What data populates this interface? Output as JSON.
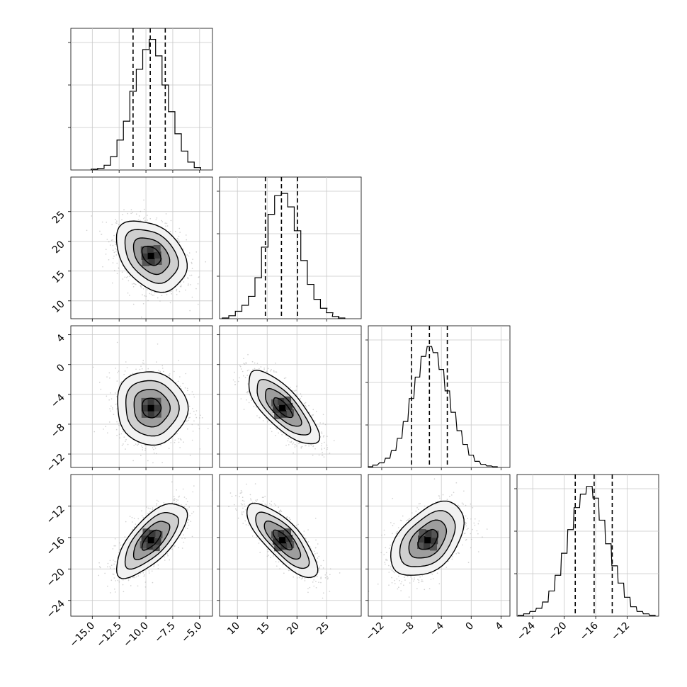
{
  "chart_data": {
    "type": "corner",
    "title": "",
    "params": [
      {
        "range": [
          -17.0,
          -3.8
        ],
        "ticks": [
          -15.0,
          -12.5,
          -10.0,
          -7.5,
          -5.0
        ],
        "tick_labels": [
          "−15.0",
          "−12.5",
          "−10.0",
          "−7.5",
          "−5.0"
        ],
        "quantiles": [
          -11.2,
          -9.6,
          -8.2
        ],
        "hist_x": [
          -14.8,
          -14.2,
          -13.6,
          -13.0,
          -12.4,
          -11.8,
          -11.2,
          -10.6,
          -10.0,
          -9.4,
          -8.8,
          -8.2,
          -7.6,
          -7.0,
          -6.4,
          -5.8,
          -5.2
        ],
        "hist": [
          1,
          2,
          6,
          17,
          38,
          62,
          100,
          128,
          153,
          166,
          145,
          108,
          74,
          46,
          24,
          10,
          3
        ],
        "hist_max": 180,
        "center": -9.5,
        "sigma": 1.6
      },
      {
        "range": [
          7.0,
          30.8
        ],
        "ticks": [
          10,
          15,
          20,
          25
        ],
        "tick_labels": [
          "10",
          "15",
          "20",
          "25"
        ],
        "quantiles": [
          14.7,
          17.4,
          20.1
        ],
        "hist_x": [
          8.0,
          9.1,
          10.2,
          11.3,
          12.4,
          13.5,
          14.6,
          15.7,
          16.8,
          17.9,
          19.0,
          20.1,
          21.2,
          22.3,
          23.4,
          24.5,
          25.5,
          26.5,
          27.5
        ],
        "hist": [
          1,
          4,
          10,
          18,
          30,
          55,
          96,
          140,
          165,
          168,
          150,
          118,
          78,
          46,
          26,
          14,
          8,
          3,
          1
        ],
        "hist_max": 190,
        "center": 17.6,
        "sigma": 2.9
      },
      {
        "range": [
          -13.8,
          5.2
        ],
        "ticks": [
          -12,
          -8,
          -4,
          0,
          4
        ],
        "tick_labels": [
          "−12",
          "−8",
          "−4",
          "0",
          "4"
        ],
        "quantiles": [
          -8.0,
          -5.6,
          -3.2
        ],
        "hist_x": [
          -13.5,
          -12.9,
          -12.0,
          -11.2,
          -10.4,
          -9.6,
          -8.8,
          -8.0,
          -7.2,
          -6.4,
          -5.6,
          -4.8,
          -4.0,
          -3.2,
          -2.4,
          -1.6,
          -0.8,
          0.0,
          0.8,
          1.6,
          2.4,
          3.2
        ],
        "hist": [
          1,
          3,
          6,
          12,
          22,
          38,
          60,
          90,
          118,
          145,
          158,
          150,
          128,
          100,
          72,
          48,
          30,
          16,
          8,
          4,
          2,
          1
        ],
        "hist_max": 185,
        "center": -5.8,
        "sigma": 2.4
      },
      {
        "range": [
          -26.0,
          -8.0
        ],
        "ticks": [
          -24,
          -20,
          -16,
          -12
        ],
        "tick_labels": [
          "−24",
          "−20",
          "−16",
          "−12"
        ],
        "quantiles": [
          -18.6,
          -16.2,
          -13.9
        ],
        "hist_x": [
          -25.5,
          -24.8,
          -24.0,
          -23.2,
          -22.4,
          -21.6,
          -20.8,
          -20.0,
          -19.2,
          -18.4,
          -17.6,
          -16.8,
          -16.0,
          -15.2,
          -14.4,
          -13.6,
          -12.8,
          -12.0,
          -11.2,
          -10.4,
          -9.6,
          -8.8
        ],
        "hist": [
          1,
          3,
          6,
          10,
          18,
          32,
          52,
          80,
          110,
          138,
          155,
          165,
          150,
          122,
          92,
          64,
          42,
          24,
          12,
          6,
          3,
          1
        ],
        "hist_max": 180,
        "center": -16.3,
        "sigma": 2.3
      }
    ],
    "correlations": [
      [
        1,
        0
      ],
      [
        2,
        0
      ],
      [
        2,
        1
      ],
      [
        3,
        0
      ],
      [
        3,
        1
      ],
      [
        3,
        2
      ]
    ],
    "rho": [
      -0.35,
      -0.05,
      -0.75,
      0.7,
      -0.78,
      0.45
    ],
    "grid": true,
    "quantile_lines": "dashed",
    "contour_levels": 4
  }
}
